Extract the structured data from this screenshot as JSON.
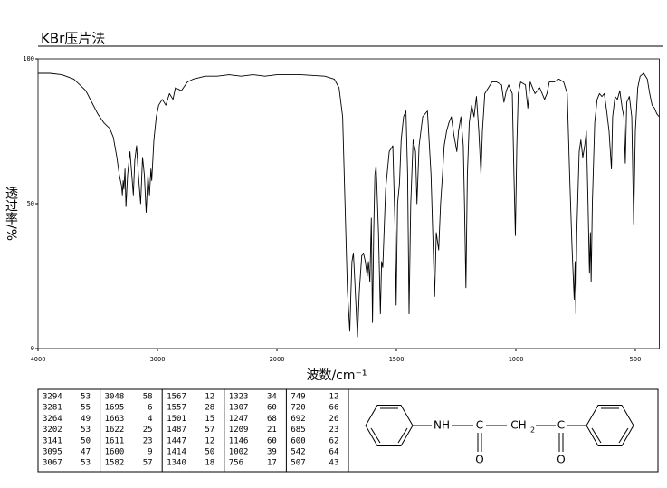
{
  "chart_data": {
    "type": "line",
    "title": "KBr压片法",
    "xlabel": "波数/cm⁻¹",
    "ylabel": "透过率/%",
    "xlim": [
      4000,
      400
    ],
    "ylim": [
      0,
      100
    ],
    "xticks": [
      4000,
      3000,
      2000,
      1500,
      1000,
      500
    ],
    "yticks": [
      0,
      50,
      100
    ],
    "grid": false,
    "color": "#000000",
    "x": [
      4000,
      3900,
      3800,
      3700,
      3650,
      3600,
      3550,
      3500,
      3450,
      3400,
      3370,
      3340,
      3320,
      3300,
      3294,
      3287,
      3281,
      3272,
      3264,
      3250,
      3230,
      3215,
      3202,
      3190,
      3175,
      3160,
      3141,
      3125,
      3110,
      3095,
      3080,
      3067,
      3055,
      3048,
      3030,
      3010,
      2990,
      2960,
      2930,
      2900,
      2870,
      2850,
      2800,
      2750,
      2700,
      2600,
      2500,
      2400,
      2300,
      2200,
      2100,
      2000,
      1900,
      1800,
      1760,
      1740,
      1725,
      1715,
      1705,
      1695,
      1690,
      1686,
      1680,
      1675,
      1663,
      1655,
      1645,
      1638,
      1630,
      1622,
      1617,
      1611,
      1605,
      1600,
      1595,
      1590,
      1585,
      1582,
      1575,
      1567,
      1562,
      1557,
      1545,
      1530,
      1515,
      1505,
      1501,
      1495,
      1487,
      1480,
      1470,
      1460,
      1453,
      1447,
      1440,
      1430,
      1420,
      1414,
      1405,
      1390,
      1370,
      1355,
      1340,
      1333,
      1323,
      1315,
      1307,
      1300,
      1290,
      1280,
      1270,
      1260,
      1247,
      1240,
      1230,
      1220,
      1215,
      1209,
      1203,
      1195,
      1185,
      1175,
      1165,
      1155,
      1146,
      1140,
      1130,
      1100,
      1080,
      1060,
      1050,
      1040,
      1030,
      1015,
      1008,
      1002,
      996,
      990,
      980,
      960,
      950,
      940,
      920,
      900,
      880,
      870,
      860,
      840,
      820,
      800,
      785,
      775,
      765,
      756,
      752,
      749,
      745,
      735,
      728,
      720,
      712,
      705,
      698,
      692,
      688,
      685,
      680,
      670,
      660,
      650,
      640,
      630,
      620,
      610,
      600,
      595,
      585,
      575,
      565,
      555,
      548,
      542,
      536,
      525,
      515,
      507,
      500,
      490,
      480,
      465,
      450,
      440,
      430,
      420,
      410,
      400
    ],
    "values": [
      95,
      95,
      94.5,
      93,
      91,
      89,
      85,
      81,
      78,
      76,
      73,
      66,
      60,
      56,
      53,
      58,
      55,
      62,
      49,
      60,
      68,
      60,
      53,
      65,
      70,
      60,
      50,
      66,
      60,
      47,
      60,
      53,
      62,
      58,
      72,
      80,
      84,
      86,
      84,
      88,
      86,
      90,
      89,
      92,
      93,
      94,
      94,
      94.5,
      94,
      94.5,
      94,
      94.5,
      94.5,
      94,
      93,
      90,
      80,
      50,
      20,
      6,
      20,
      30,
      33,
      25,
      4,
      20,
      32,
      33,
      30,
      25,
      30,
      23,
      45,
      9,
      40,
      60,
      63,
      57,
      40,
      12,
      30,
      28,
      55,
      68,
      70,
      40,
      15,
      50,
      57,
      72,
      80,
      82,
      60,
      12,
      50,
      72,
      68,
      50,
      70,
      80,
      82,
      60,
      18,
      40,
      34,
      50,
      60,
      70,
      75,
      78,
      80,
      74,
      68,
      75,
      80,
      70,
      50,
      21,
      60,
      78,
      84,
      80,
      87,
      75,
      60,
      75,
      88,
      92,
      92,
      91,
      85,
      89,
      91,
      88,
      60,
      39,
      70,
      88,
      92,
      91,
      83,
      92,
      88,
      90,
      86,
      88,
      92,
      92,
      93,
      92,
      88,
      60,
      35,
      17,
      30,
      12,
      40,
      68,
      72,
      66,
      70,
      75,
      50,
      26,
      40,
      23,
      50,
      78,
      86,
      88,
      87,
      88,
      82,
      75,
      62,
      80,
      87,
      86,
      89,
      83,
      80,
      64,
      85,
      87,
      80,
      43,
      75,
      90,
      94,
      95,
      93,
      88,
      84,
      83,
      81,
      80
    ]
  },
  "peak_table": {
    "columns": [
      [
        [
          3294,
          53
        ],
        [
          3281,
          55
        ],
        [
          3264,
          49
        ],
        [
          3202,
          53
        ],
        [
          3141,
          50
        ],
        [
          3095,
          47
        ],
        [
          3067,
          53
        ]
      ],
      [
        [
          3048,
          58
        ],
        [
          1695,
          6
        ],
        [
          1663,
          4
        ],
        [
          1622,
          25
        ],
        [
          1611,
          23
        ],
        [
          1600,
          9
        ],
        [
          1582,
          57
        ]
      ],
      [
        [
          1567,
          12
        ],
        [
          1557,
          28
        ],
        [
          1501,
          15
        ],
        [
          1487,
          57
        ],
        [
          1447,
          12
        ],
        [
          1414,
          50
        ],
        [
          1340,
          18
        ]
      ],
      [
        [
          1323,
          34
        ],
        [
          1307,
          60
        ],
        [
          1247,
          68
        ],
        [
          1209,
          21
        ],
        [
          1146,
          60
        ],
        [
          1002,
          39
        ],
        [
          756,
          17
        ]
      ],
      [
        [
          749,
          12
        ],
        [
          720,
          66
        ],
        [
          692,
          26
        ],
        [
          685,
          23
        ],
        [
          600,
          62
        ],
        [
          542,
          64
        ],
        [
          507,
          43
        ]
      ]
    ]
  },
  "structure": {
    "labels": [
      "NH",
      "C",
      "CH",
      "2",
      "C",
      "O",
      "O"
    ]
  }
}
